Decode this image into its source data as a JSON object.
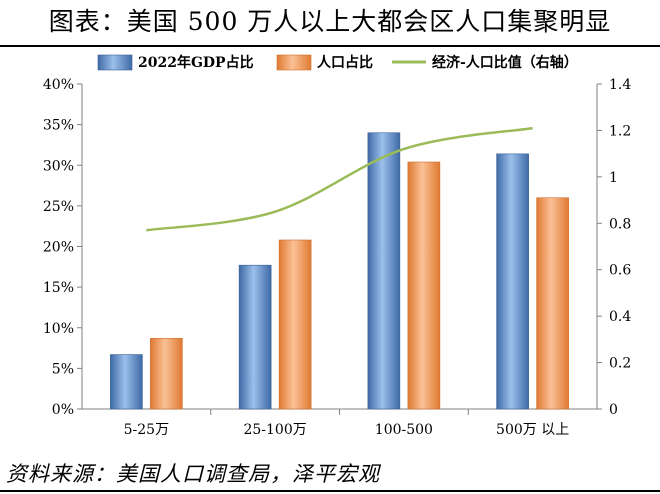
{
  "header": {
    "title": "图表：美国 500 万人以上大都会区人口集聚明显"
  },
  "footer": {
    "source": "资料来源：美国人口调查局，泽平宏观"
  },
  "colors": {
    "gdp": "#4f81bd",
    "pop": "#f79646",
    "econ": "#9bbb59"
  },
  "chart_data": {
    "type": "bar",
    "categories": [
      "5-25万",
      "25-100万",
      "100-500",
      "500万 以上"
    ],
    "series": [
      {
        "name": "2022年GDP占比",
        "kind": "bar",
        "axis": "left",
        "values": [
          6.7,
          17.7,
          34.0,
          31.4
        ]
      },
      {
        "name": "人口占比",
        "kind": "bar",
        "axis": "left",
        "values": [
          8.7,
          20.8,
          30.4,
          26.0
        ]
      },
      {
        "name": "经济-人口比值（右轴）",
        "kind": "line",
        "axis": "right",
        "values": [
          0.77,
          0.85,
          1.12,
          1.21
        ]
      }
    ],
    "left_axis": {
      "min": 0,
      "max": 40,
      "step": 5,
      "tick_labels": [
        "0%",
        "5%",
        "10%",
        "15%",
        "20%",
        "25%",
        "30%",
        "35%",
        "40%"
      ]
    },
    "right_axis": {
      "min": 0,
      "max": 1.4,
      "step": 0.2,
      "tick_labels": [
        "0",
        "0.2",
        "0.4",
        "0.6",
        "0.8",
        "1",
        "1.2",
        "1.4"
      ]
    },
    "legend_position": "top",
    "grid": false
  }
}
